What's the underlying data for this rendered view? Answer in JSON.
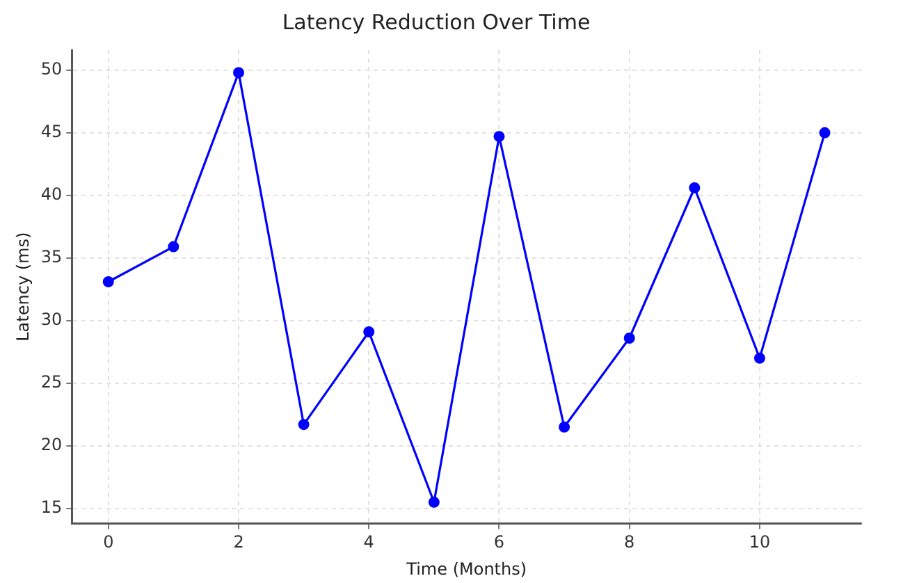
{
  "chart_data": {
    "type": "line",
    "title": "Latency Reduction Over Time",
    "xlabel": "Time (Months)",
    "ylabel": "Latency (ms)",
    "x": [
      0,
      1,
      2,
      3,
      4,
      5,
      6,
      7,
      8,
      9,
      10,
      11
    ],
    "series": [
      {
        "color": "#0000ff",
        "values": [
          33.1,
          35.9,
          49.8,
          21.7,
          29.1,
          15.5,
          44.7,
          21.5,
          28.6,
          40.6,
          27.0,
          45.0
        ]
      }
    ],
    "xlim": [
      -0.56,
      11.56
    ],
    "xticks": [
      0,
      2,
      4,
      6,
      8,
      10
    ],
    "ylim": [
      13.8,
      51.6
    ],
    "yticks": [
      15,
      20,
      25,
      30,
      35,
      40,
      45,
      50
    ],
    "grid": true,
    "legend": false,
    "marker": "circle",
    "line_style": "solid"
  }
}
